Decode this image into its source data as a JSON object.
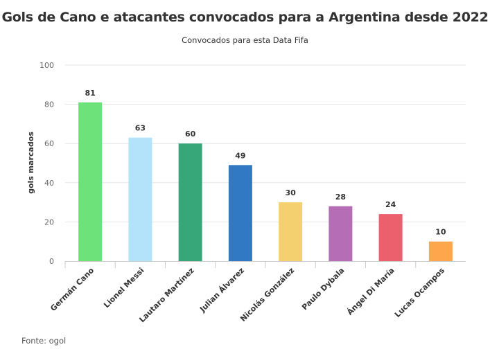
{
  "chart_data": {
    "type": "bar",
    "title": "Gols de Cano e atacantes convocados para a Argentina desde 2022",
    "subtitle": "Convocados para esta Data Fifa",
    "ylabel": "gols marcados",
    "xlabel": "",
    "ylim": [
      0,
      100
    ],
    "yticks": [
      0,
      20,
      40,
      60,
      80,
      100
    ],
    "grid": true,
    "legend": "none",
    "categories": [
      "Germán Cano",
      "Lionel Messi",
      "Lautaro Martínez",
      "Julian Álvarez",
      "Nicolás González",
      "Paulo Dybala",
      "Ángel Di María",
      "Lucas Ocampos"
    ],
    "values": [
      81,
      63,
      60,
      49,
      30,
      28,
      24,
      10
    ],
    "colors": [
      "#6ee27a",
      "#b3e3fb",
      "#37a679",
      "#3279c4",
      "#f5d06e",
      "#b56db6",
      "#ec5f6c",
      "#fea64b"
    ],
    "source": "Fonte: ogol"
  }
}
